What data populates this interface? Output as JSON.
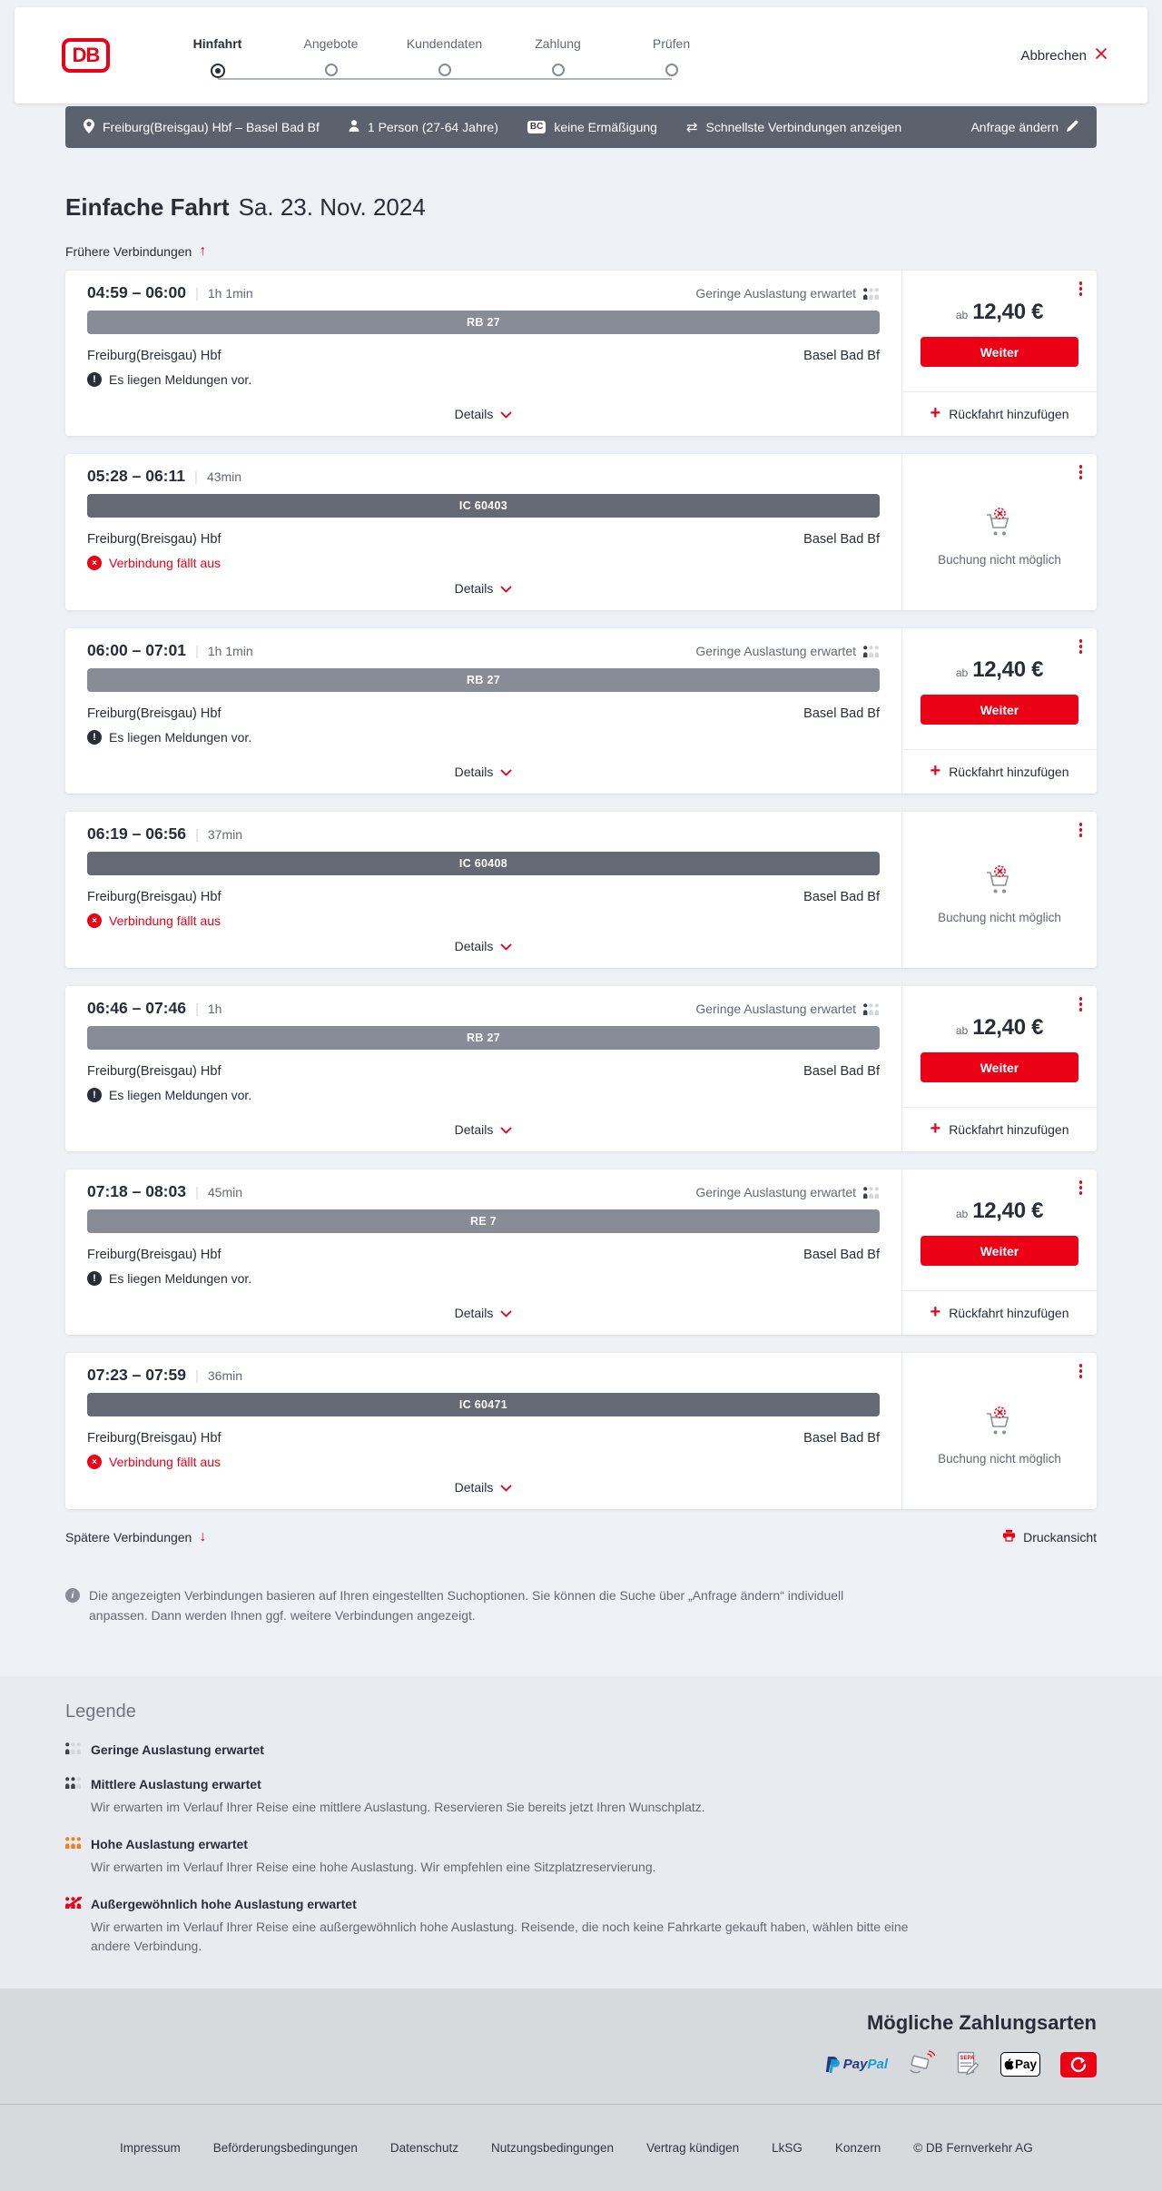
{
  "header": {
    "logo_text": "DB",
    "steps": [
      {
        "label": "Hinfahrt",
        "active": true
      },
      {
        "label": "Angebote",
        "active": false
      },
      {
        "label": "Kundendaten",
        "active": false
      },
      {
        "label": "Zahlung",
        "active": false
      },
      {
        "label": "Prüfen",
        "active": false
      }
    ],
    "cancel_label": "Abbrechen"
  },
  "query_bar": {
    "route": "Freiburg(Breisgau) Hbf – Basel Bad Bf",
    "passengers": "1 Person (27-64 Jahre)",
    "bahncard_badge": "BC",
    "discount": "keine Ermäßigung",
    "view_mode": "Schnellste Verbindungen anzeigen",
    "edit_label": "Anfrage ändern"
  },
  "results": {
    "heading": "Einfache Fahrt",
    "date": "Sa. 23. Nov. 2024",
    "earlier_label": "Frühere Verbindungen",
    "later_label": "Spätere Verbindungen",
    "print_label": "Druckansicht",
    "details_label": "Details",
    "note": "Die angezeigten Verbindungen basieren auf Ihren eingestellten Suchoptionen. Sie können die Suche über „Anfrage ändern“ individuell anpassen. Dann werden Ihnen ggf. weitere Verbindungen angezeigt.",
    "connections": [
      {
        "time": "04:59 – 06:00",
        "duration": "1h 1min",
        "train": "RB 27",
        "variant": "regional",
        "from": "Freiburg(Breisgau) Hbf",
        "to": "Basel Bad Bf",
        "occupancy": "Geringe Auslastung erwartet",
        "notice": "Es liegen Meldungen vor.",
        "bookable": true,
        "price_prefix": "ab",
        "price": "12,40 €",
        "cta": "Weiter",
        "add_return": "Rückfahrt hinzufügen"
      },
      {
        "time": "05:28 – 06:11",
        "duration": "43min",
        "train": "IC 60403",
        "variant": "longdistance",
        "from": "Freiburg(Breisgau) Hbf",
        "to": "Basel Bad Bf",
        "error": "Verbindung fällt aus",
        "bookable": false,
        "no_booking": "Buchung nicht möglich"
      },
      {
        "time": "06:00 – 07:01",
        "duration": "1h 1min",
        "train": "RB 27",
        "variant": "regional",
        "from": "Freiburg(Breisgau) Hbf",
        "to": "Basel Bad Bf",
        "occupancy": "Geringe Auslastung erwartet",
        "notice": "Es liegen Meldungen vor.",
        "bookable": true,
        "price_prefix": "ab",
        "price": "12,40 €",
        "cta": "Weiter",
        "add_return": "Rückfahrt hinzufügen"
      },
      {
        "time": "06:19 – 06:56",
        "duration": "37min",
        "train": "IC 60408",
        "variant": "longdistance",
        "from": "Freiburg(Breisgau) Hbf",
        "to": "Basel Bad Bf",
        "error": "Verbindung fällt aus",
        "bookable": false,
        "no_booking": "Buchung nicht möglich"
      },
      {
        "time": "06:46 – 07:46",
        "duration": "1h",
        "train": "RB 27",
        "variant": "regional",
        "from": "Freiburg(Breisgau) Hbf",
        "to": "Basel Bad Bf",
        "occupancy": "Geringe Auslastung erwartet",
        "notice": "Es liegen Meldungen vor.",
        "bookable": true,
        "price_prefix": "ab",
        "price": "12,40 €",
        "cta": "Weiter",
        "add_return": "Rückfahrt hinzufügen"
      },
      {
        "time": "07:18 – 08:03",
        "duration": "45min",
        "train": "RE 7",
        "variant": "regional",
        "from": "Freiburg(Breisgau) Hbf",
        "to": "Basel Bad Bf",
        "occupancy": "Geringe Auslastung erwartet",
        "notice": "Es liegen Meldungen vor.",
        "bookable": true,
        "price_prefix": "ab",
        "price": "12,40 €",
        "cta": "Weiter",
        "add_return": "Rückfahrt hinzufügen"
      },
      {
        "time": "07:23 – 07:59",
        "duration": "36min",
        "train": "IC 60471",
        "variant": "longdistance",
        "from": "Freiburg(Breisgau) Hbf",
        "to": "Basel Bad Bf",
        "error": "Verbindung fällt aus",
        "bookable": false,
        "no_booking": "Buchung nicht möglich"
      }
    ]
  },
  "legend": {
    "heading": "Legende",
    "items": [
      {
        "level": "low",
        "title": "Geringe Auslastung erwartet",
        "desc": ""
      },
      {
        "level": "medium",
        "title": "Mittlere Auslastung erwartet",
        "desc": "Wir erwarten im Verlauf Ihrer Reise eine mittlere Auslastung. Reservieren Sie bereits jetzt Ihren Wunschplatz."
      },
      {
        "level": "high",
        "title": "Hohe Auslastung erwartet",
        "desc": "Wir erwarten im Verlauf Ihrer Reise eine hohe Auslastung. Wir empfehlen eine Sitzplatzreservierung."
      },
      {
        "level": "exceptional",
        "title": "Außergewöhnlich hohe Auslastung erwartet",
        "desc": "Wir erwarten im Verlauf Ihrer Reise eine außergewöhnlich hohe Auslastung. Reisende, die noch keine Fahrkarte gekauft haben, wählen bitte eine andere Verbindung."
      }
    ]
  },
  "payment": {
    "title": "Mögliche Zahlungsarten",
    "labels": {
      "paypal_pay": "Pay",
      "paypal_pal": "Pal",
      "paypal_p": "P",
      "sepa": "SEPA",
      "applepay": "Pay"
    },
    "methods": [
      "PayPal",
      "Kreditkarte",
      "SEPA-Lastschrift",
      "Apple Pay",
      "Gutschein"
    ]
  },
  "footer": {
    "links": [
      "Impressum",
      "Beförderungsbedingungen",
      "Datenschutz",
      "Nutzungsbedingungen",
      "Vertrag kündigen",
      "LkSG",
      "Konzern"
    ],
    "copyright": "© DB Fernverkehr AG"
  },
  "colors": {
    "brand_red": "#ec0016",
    "dark": "#282d37",
    "gray": "#646973",
    "bar_regional": "#878c96",
    "bar_longdistance": "#646973",
    "occupancy_high": "#f07d19"
  }
}
